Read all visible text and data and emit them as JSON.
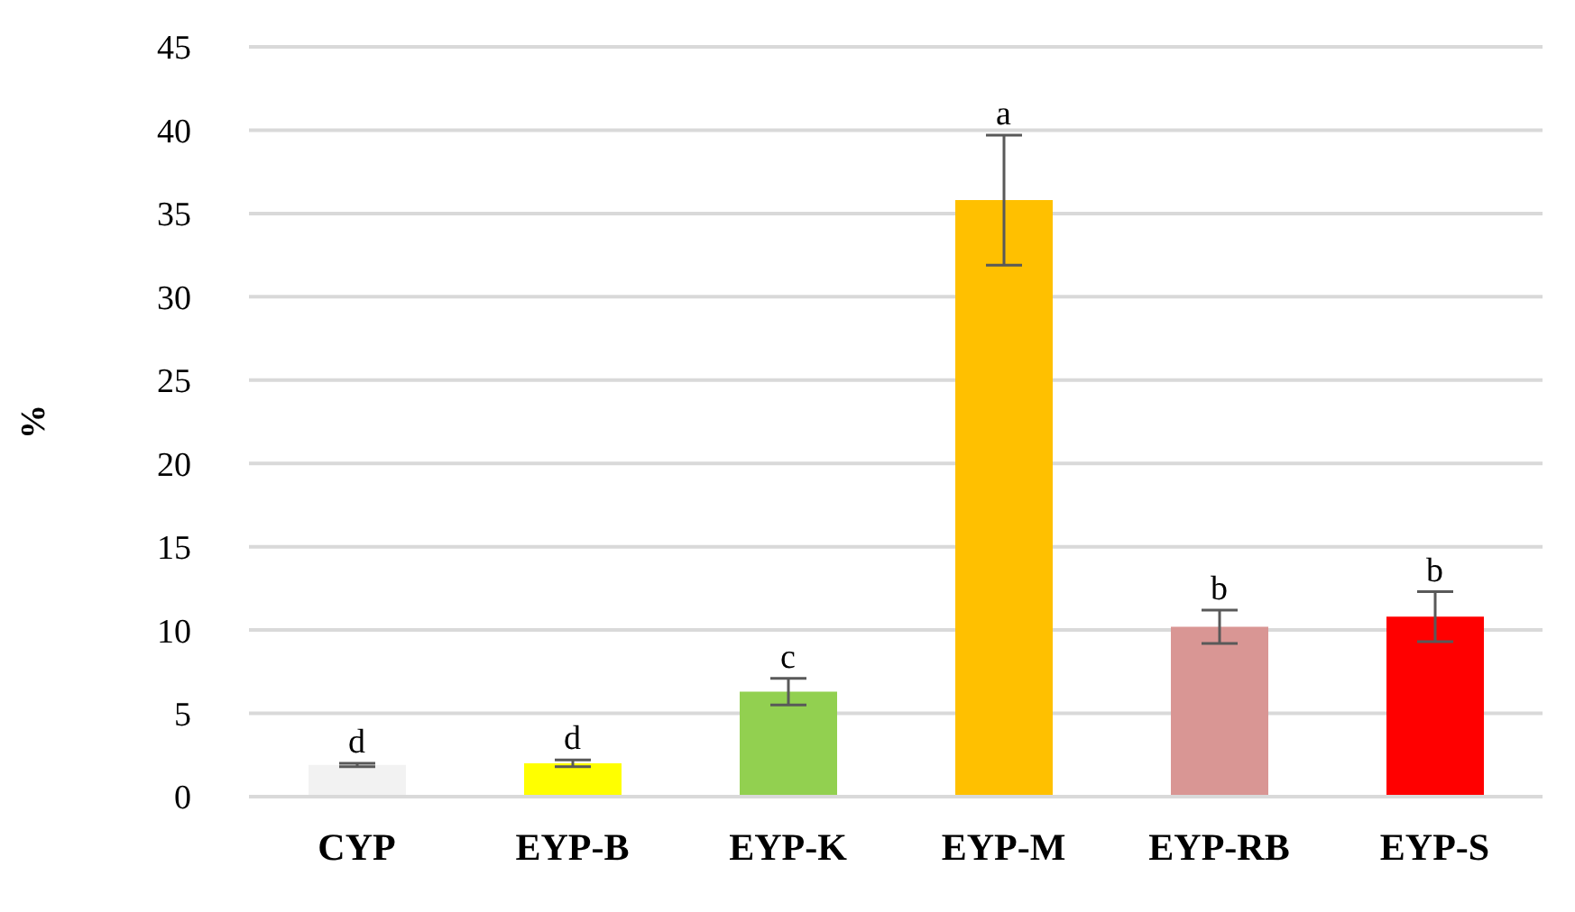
{
  "chart_data": {
    "type": "bar",
    "ylabel": "%",
    "categories": [
      "CYP",
      "EYP-B",
      "EYP-K",
      "EYP-M",
      "EYP-RB",
      "EYP-S"
    ],
    "values": [
      1.9,
      2.0,
      6.3,
      35.8,
      10.2,
      10.8
    ],
    "errors": [
      0.1,
      0.2,
      0.8,
      3.9,
      1.0,
      1.5
    ],
    "colors": [
      "#f2f2f2",
      "#ffff00",
      "#92d050",
      "#ffc000",
      "#d99694",
      "#ff0000"
    ],
    "ylim": [
      0,
      45
    ],
    "yticks": [
      0,
      5,
      10,
      15,
      20,
      25,
      30,
      35,
      40,
      45
    ],
    "grid": "y",
    "annotations": [
      {
        "text": "d",
        "x": "CYP",
        "y": 2.0
      },
      {
        "text": "d",
        "x": "EYP-B",
        "y": 2.2
      },
      {
        "text": "c",
        "x": "EYP-K",
        "y": 7.1
      },
      {
        "text": "a",
        "x": "EYP-M",
        "y": 39.7
      },
      {
        "text": "b",
        "x": "EYP-RB",
        "y": 11.2
      },
      {
        "text": "b",
        "x": "EYP-S",
        "y": 12.3
      }
    ]
  }
}
